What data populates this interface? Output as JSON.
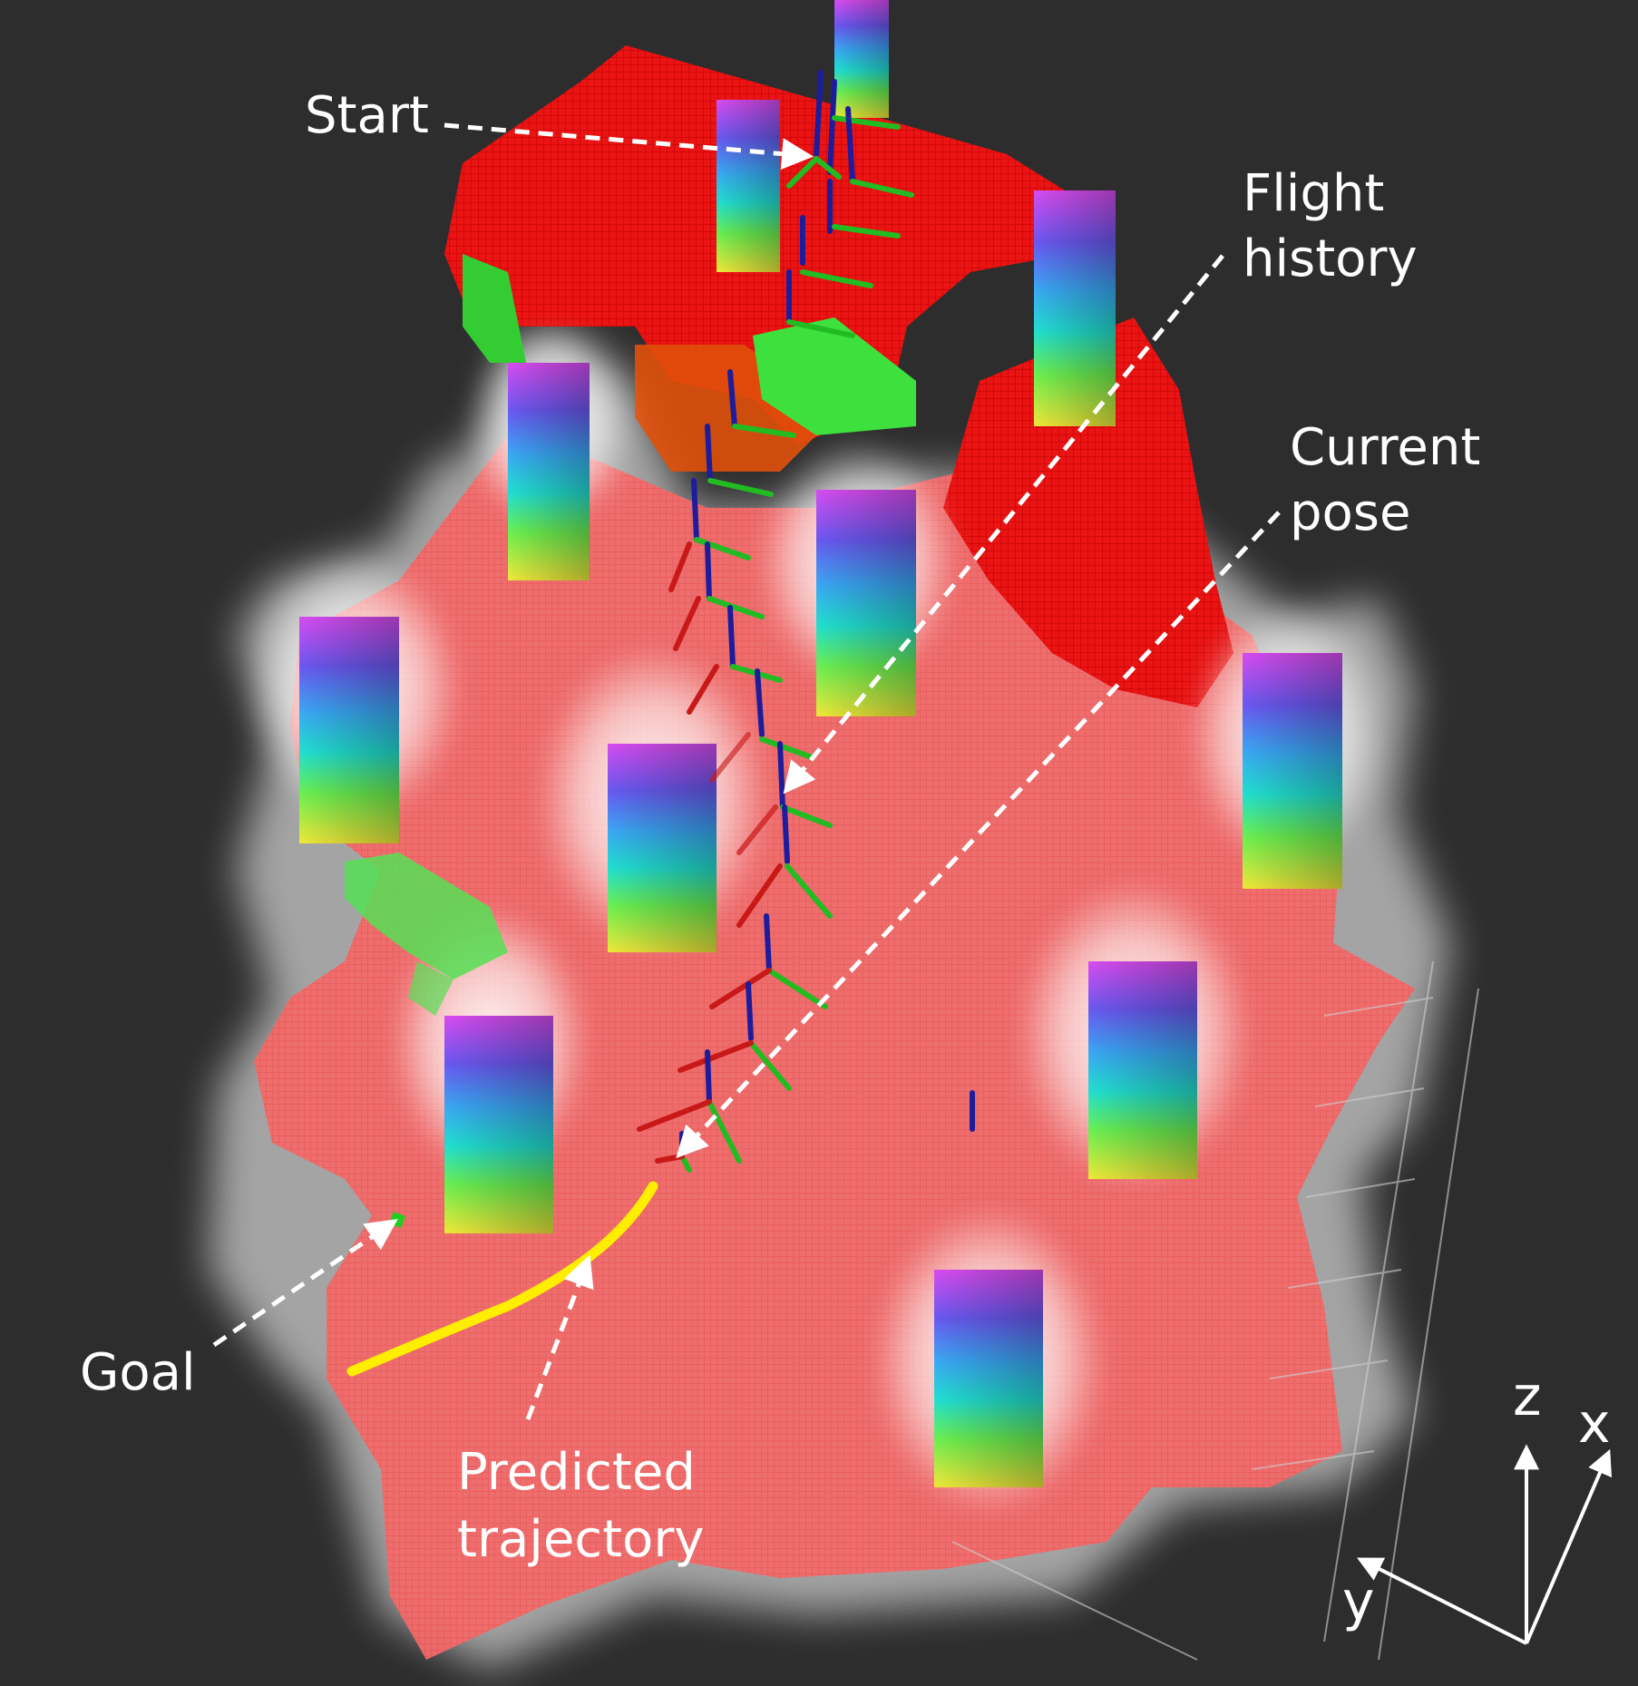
{
  "labels": {
    "start": "Start",
    "flight_history_1": "Flight",
    "flight_history_2": "history",
    "current_pose_1": "Current",
    "current_pose_2": "pose",
    "goal": "Goal",
    "predicted_1": "Predicted",
    "predicted_2": "trajectory"
  },
  "axes": {
    "z": "z",
    "x": "x",
    "y": "y"
  },
  "colors": {
    "background": "#2d2d2d",
    "map_floor": "#ef5a5a",
    "wall_red": "#e41010",
    "trajectory": "#ffee00",
    "annotation": "#ffffff",
    "pose_red": "#c81818",
    "pose_green": "#22bb22",
    "pose_blue": "#1c1c9c"
  }
}
